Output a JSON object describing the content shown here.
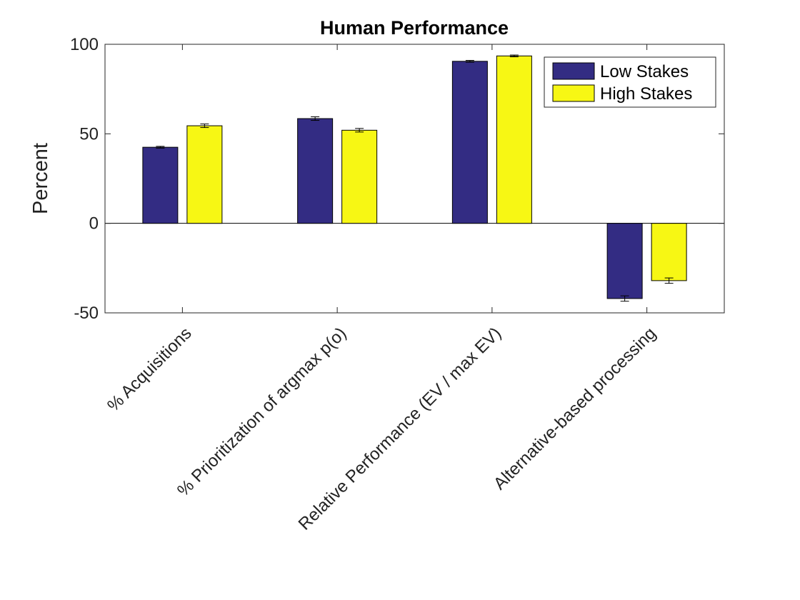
{
  "chart_data": {
    "type": "bar",
    "title": "Human Performance",
    "xlabel": "",
    "ylabel": "Percent",
    "ylim": [
      -50,
      100
    ],
    "yticks": [
      -50,
      0,
      50,
      100
    ],
    "categories": [
      "% Acquisitions",
      "% Prioritization of argmax p(o)",
      "Relative Performance (EV / max EV)",
      "Alternative-based processing"
    ],
    "series": [
      {
        "name": "Low Stakes",
        "color": "#332C83",
        "values": [
          42.5,
          58.5,
          90.5,
          -42
        ],
        "errors": [
          0.5,
          1.0,
          0.5,
          1.5
        ]
      },
      {
        "name": "High Stakes",
        "color": "#F7F714",
        "values": [
          54.5,
          52,
          93.5,
          -32
        ],
        "errors": [
          1.0,
          1.0,
          0.5,
          1.5
        ]
      }
    ],
    "legend_position": "top-right",
    "grid": false
  }
}
